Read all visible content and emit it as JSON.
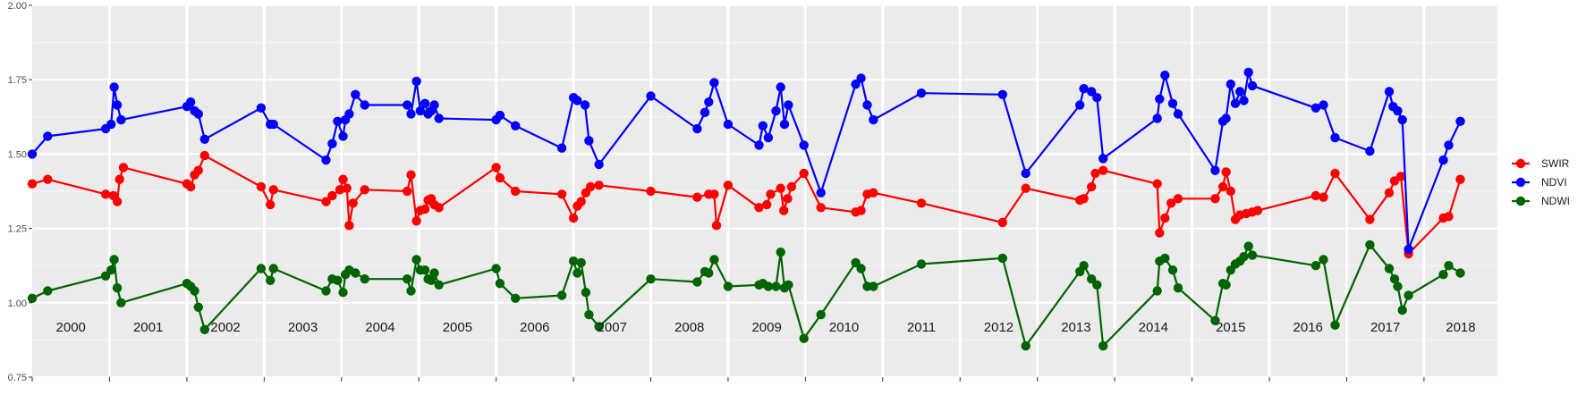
{
  "chart_data": {
    "type": "line",
    "title": "",
    "xlabel": "",
    "ylabel": "",
    "xlim": [
      2000.0,
      2018.95
    ],
    "ylim": [
      0.75,
      2.0
    ],
    "y_ticks": [
      "0.75",
      "1.00",
      "1.25",
      "1.50",
      "1.75",
      "2.00"
    ],
    "y_tick_values": [
      0.75,
      1.0,
      1.25,
      1.5,
      1.75,
      2.0
    ],
    "years": [
      "2000",
      "2001",
      "2002",
      "2003",
      "2004",
      "2005",
      "2006",
      "2007",
      "2008",
      "2009",
      "2010",
      "2011",
      "2012",
      "2013",
      "2014",
      "2015",
      "2016",
      "2017",
      "2018"
    ],
    "grid": true,
    "legend_position": "right",
    "series": [
      {
        "name": "SWIR",
        "color": "#ff0000",
        "points": [
          [
            2000.0,
            1.4
          ],
          [
            2000.2,
            1.415
          ],
          [
            2000.95,
            1.365
          ],
          [
            2001.05,
            1.36
          ],
          [
            2001.1,
            1.34
          ],
          [
            2001.13,
            1.415
          ],
          [
            2001.18,
            1.455
          ],
          [
            2002.0,
            1.4
          ],
          [
            2002.05,
            1.39
          ],
          [
            2002.1,
            1.43
          ],
          [
            2002.15,
            1.445
          ],
          [
            2002.23,
            1.495
          ],
          [
            2002.96,
            1.39
          ],
          [
            2003.08,
            1.33
          ],
          [
            2003.12,
            1.38
          ],
          [
            2003.8,
            1.34
          ],
          [
            2003.88,
            1.36
          ],
          [
            2003.98,
            1.38
          ],
          [
            2004.02,
            1.415
          ],
          [
            2004.07,
            1.385
          ],
          [
            2004.1,
            1.26
          ],
          [
            2004.15,
            1.335
          ],
          [
            2004.3,
            1.38
          ],
          [
            2004.85,
            1.375
          ],
          [
            2004.9,
            1.43
          ],
          [
            2004.97,
            1.275
          ],
          [
            2005.02,
            1.31
          ],
          [
            2005.08,
            1.315
          ],
          [
            2005.12,
            1.345
          ],
          [
            2005.16,
            1.35
          ],
          [
            2005.2,
            1.33
          ],
          [
            2005.26,
            1.32
          ],
          [
            2006.0,
            1.455
          ],
          [
            2006.05,
            1.42
          ],
          [
            2006.25,
            1.375
          ],
          [
            2006.85,
            1.365
          ],
          [
            2007.0,
            1.285
          ],
          [
            2007.05,
            1.325
          ],
          [
            2007.1,
            1.34
          ],
          [
            2007.16,
            1.37
          ],
          [
            2007.22,
            1.39
          ],
          [
            2007.33,
            1.395
          ],
          [
            2008.0,
            1.375
          ],
          [
            2008.6,
            1.355
          ],
          [
            2008.75,
            1.365
          ],
          [
            2008.82,
            1.365
          ],
          [
            2008.85,
            1.26
          ],
          [
            2009.0,
            1.395
          ],
          [
            2009.4,
            1.32
          ],
          [
            2009.5,
            1.33
          ],
          [
            2009.55,
            1.365
          ],
          [
            2009.68,
            1.385
          ],
          [
            2009.72,
            1.31
          ],
          [
            2009.77,
            1.35
          ],
          [
            2009.82,
            1.39
          ],
          [
            2009.98,
            1.435
          ],
          [
            2010.2,
            1.32
          ],
          [
            2010.65,
            1.305
          ],
          [
            2010.72,
            1.31
          ],
          [
            2010.8,
            1.365
          ],
          [
            2010.88,
            1.37
          ],
          [
            2011.5,
            1.335
          ],
          [
            2012.55,
            1.27
          ],
          [
            2012.85,
            1.385
          ],
          [
            2013.55,
            1.345
          ],
          [
            2013.6,
            1.35
          ],
          [
            2013.7,
            1.39
          ],
          [
            2013.75,
            1.435
          ],
          [
            2013.85,
            1.445
          ],
          [
            2014.55,
            1.4
          ],
          [
            2014.58,
            1.235
          ],
          [
            2014.65,
            1.285
          ],
          [
            2014.73,
            1.335
          ],
          [
            2014.82,
            1.35
          ],
          [
            2015.3,
            1.35
          ],
          [
            2015.4,
            1.39
          ],
          [
            2015.44,
            1.44
          ],
          [
            2015.5,
            1.375
          ],
          [
            2015.56,
            1.28
          ],
          [
            2015.62,
            1.295
          ],
          [
            2015.7,
            1.3
          ],
          [
            2015.78,
            1.305
          ],
          [
            2015.85,
            1.31
          ],
          [
            2016.6,
            1.36
          ],
          [
            2016.7,
            1.355
          ],
          [
            2016.85,
            1.435
          ],
          [
            2017.3,
            1.28
          ],
          [
            2017.55,
            1.37
          ],
          [
            2017.62,
            1.41
          ],
          [
            2017.7,
            1.425
          ],
          [
            2017.8,
            1.165
          ],
          [
            2018.25,
            1.285
          ],
          [
            2018.32,
            1.29
          ],
          [
            2018.47,
            1.415
          ]
        ]
      },
      {
        "name": "NDVI",
        "color": "#0000ff",
        "points": [
          [
            2000.0,
            1.5
          ],
          [
            2000.2,
            1.56
          ],
          [
            2000.95,
            1.585
          ],
          [
            2001.02,
            1.6
          ],
          [
            2001.06,
            1.725
          ],
          [
            2001.1,
            1.665
          ],
          [
            2001.15,
            1.615
          ],
          [
            2002.0,
            1.66
          ],
          [
            2002.05,
            1.675
          ],
          [
            2002.1,
            1.645
          ],
          [
            2002.15,
            1.635
          ],
          [
            2002.23,
            1.55
          ],
          [
            2002.96,
            1.655
          ],
          [
            2003.08,
            1.6
          ],
          [
            2003.12,
            1.6
          ],
          [
            2003.8,
            1.48
          ],
          [
            2003.88,
            1.535
          ],
          [
            2003.95,
            1.61
          ],
          [
            2004.02,
            1.56
          ],
          [
            2004.05,
            1.615
          ],
          [
            2004.1,
            1.635
          ],
          [
            2004.18,
            1.7
          ],
          [
            2004.3,
            1.665
          ],
          [
            2004.85,
            1.665
          ],
          [
            2004.9,
            1.635
          ],
          [
            2004.97,
            1.745
          ],
          [
            2005.02,
            1.645
          ],
          [
            2005.08,
            1.67
          ],
          [
            2005.12,
            1.635
          ],
          [
            2005.16,
            1.645
          ],
          [
            2005.2,
            1.665
          ],
          [
            2005.26,
            1.62
          ],
          [
            2006.0,
            1.615
          ],
          [
            2006.05,
            1.63
          ],
          [
            2006.25,
            1.595
          ],
          [
            2006.85,
            1.52
          ],
          [
            2007.0,
            1.69
          ],
          [
            2007.05,
            1.68
          ],
          [
            2007.15,
            1.665
          ],
          [
            2007.2,
            1.545
          ],
          [
            2007.33,
            1.465
          ],
          [
            2008.0,
            1.695
          ],
          [
            2008.6,
            1.585
          ],
          [
            2008.7,
            1.64
          ],
          [
            2008.75,
            1.675
          ],
          [
            2008.82,
            1.74
          ],
          [
            2009.0,
            1.6
          ],
          [
            2009.4,
            1.53
          ],
          [
            2009.45,
            1.595
          ],
          [
            2009.52,
            1.555
          ],
          [
            2009.62,
            1.645
          ],
          [
            2009.68,
            1.725
          ],
          [
            2009.73,
            1.6
          ],
          [
            2009.78,
            1.665
          ],
          [
            2009.98,
            1.53
          ],
          [
            2010.2,
            1.37
          ],
          [
            2010.65,
            1.735
          ],
          [
            2010.72,
            1.755
          ],
          [
            2010.8,
            1.665
          ],
          [
            2010.88,
            1.615
          ],
          [
            2011.5,
            1.705
          ],
          [
            2012.55,
            1.7
          ],
          [
            2012.85,
            1.435
          ],
          [
            2013.55,
            1.665
          ],
          [
            2013.6,
            1.72
          ],
          [
            2013.7,
            1.71
          ],
          [
            2013.77,
            1.69
          ],
          [
            2013.85,
            1.485
          ],
          [
            2014.55,
            1.62
          ],
          [
            2014.58,
            1.685
          ],
          [
            2014.65,
            1.765
          ],
          [
            2014.75,
            1.67
          ],
          [
            2014.82,
            1.635
          ],
          [
            2015.3,
            1.445
          ],
          [
            2015.4,
            1.61
          ],
          [
            2015.44,
            1.62
          ],
          [
            2015.5,
            1.735
          ],
          [
            2015.56,
            1.67
          ],
          [
            2015.62,
            1.71
          ],
          [
            2015.67,
            1.68
          ],
          [
            2015.73,
            1.775
          ],
          [
            2015.78,
            1.73
          ],
          [
            2016.6,
            1.655
          ],
          [
            2016.7,
            1.665
          ],
          [
            2016.85,
            1.555
          ],
          [
            2017.3,
            1.51
          ],
          [
            2017.55,
            1.71
          ],
          [
            2017.6,
            1.66
          ],
          [
            2017.66,
            1.645
          ],
          [
            2017.72,
            1.615
          ],
          [
            2017.8,
            1.18
          ],
          [
            2018.25,
            1.48
          ],
          [
            2018.32,
            1.53
          ],
          [
            2018.47,
            1.61
          ]
        ]
      },
      {
        "name": "NDWI",
        "color": "#006400",
        "points": [
          [
            2000.0,
            1.015
          ],
          [
            2000.2,
            1.04
          ],
          [
            2000.95,
            1.09
          ],
          [
            2001.02,
            1.11
          ],
          [
            2001.06,
            1.145
          ],
          [
            2001.1,
            1.05
          ],
          [
            2001.15,
            1.0
          ],
          [
            2002.0,
            1.065
          ],
          [
            2002.05,
            1.055
          ],
          [
            2002.1,
            1.04
          ],
          [
            2002.15,
            0.985
          ],
          [
            2002.23,
            0.91
          ],
          [
            2002.96,
            1.115
          ],
          [
            2003.08,
            1.075
          ],
          [
            2003.12,
            1.115
          ],
          [
            2003.8,
            1.04
          ],
          [
            2003.88,
            1.08
          ],
          [
            2003.95,
            1.075
          ],
          [
            2004.02,
            1.035
          ],
          [
            2004.05,
            1.095
          ],
          [
            2004.1,
            1.11
          ],
          [
            2004.18,
            1.1
          ],
          [
            2004.3,
            1.08
          ],
          [
            2004.85,
            1.08
          ],
          [
            2004.9,
            1.04
          ],
          [
            2004.97,
            1.145
          ],
          [
            2005.02,
            1.11
          ],
          [
            2005.08,
            1.11
          ],
          [
            2005.12,
            1.08
          ],
          [
            2005.16,
            1.075
          ],
          [
            2005.2,
            1.1
          ],
          [
            2005.26,
            1.06
          ],
          [
            2006.0,
            1.115
          ],
          [
            2006.05,
            1.065
          ],
          [
            2006.25,
            1.015
          ],
          [
            2006.85,
            1.025
          ],
          [
            2007.0,
            1.14
          ],
          [
            2007.05,
            1.1
          ],
          [
            2007.1,
            1.135
          ],
          [
            2007.16,
            1.035
          ],
          [
            2007.2,
            0.96
          ],
          [
            2007.33,
            0.92
          ],
          [
            2008.0,
            1.08
          ],
          [
            2008.6,
            1.07
          ],
          [
            2008.7,
            1.105
          ],
          [
            2008.75,
            1.1
          ],
          [
            2008.82,
            1.145
          ],
          [
            2009.0,
            1.055
          ],
          [
            2009.4,
            1.06
          ],
          [
            2009.45,
            1.065
          ],
          [
            2009.52,
            1.055
          ],
          [
            2009.62,
            1.055
          ],
          [
            2009.68,
            1.17
          ],
          [
            2009.73,
            1.05
          ],
          [
            2009.78,
            1.06
          ],
          [
            2009.98,
            0.88
          ],
          [
            2010.2,
            0.96
          ],
          [
            2010.65,
            1.135
          ],
          [
            2010.72,
            1.115
          ],
          [
            2010.8,
            1.055
          ],
          [
            2010.88,
            1.055
          ],
          [
            2011.5,
            1.13
          ],
          [
            2012.55,
            1.15
          ],
          [
            2012.85,
            0.855
          ],
          [
            2013.55,
            1.105
          ],
          [
            2013.6,
            1.125
          ],
          [
            2013.7,
            1.08
          ],
          [
            2013.77,
            1.06
          ],
          [
            2013.85,
            0.855
          ],
          [
            2014.55,
            1.04
          ],
          [
            2014.58,
            1.14
          ],
          [
            2014.65,
            1.15
          ],
          [
            2014.75,
            1.11
          ],
          [
            2014.82,
            1.05
          ],
          [
            2015.3,
            0.94
          ],
          [
            2015.4,
            1.065
          ],
          [
            2015.44,
            1.06
          ],
          [
            2015.5,
            1.11
          ],
          [
            2015.56,
            1.13
          ],
          [
            2015.62,
            1.14
          ],
          [
            2015.67,
            1.155
          ],
          [
            2015.73,
            1.19
          ],
          [
            2015.78,
            1.16
          ],
          [
            2016.6,
            1.125
          ],
          [
            2016.7,
            1.145
          ],
          [
            2016.85,
            0.925
          ],
          [
            2017.3,
            1.195
          ],
          [
            2017.55,
            1.115
          ],
          [
            2017.62,
            1.08
          ],
          [
            2017.66,
            1.055
          ],
          [
            2017.72,
            0.975
          ],
          [
            2017.8,
            1.025
          ],
          [
            2018.25,
            1.095
          ],
          [
            2018.32,
            1.125
          ],
          [
            2018.47,
            1.1
          ]
        ]
      }
    ]
  }
}
